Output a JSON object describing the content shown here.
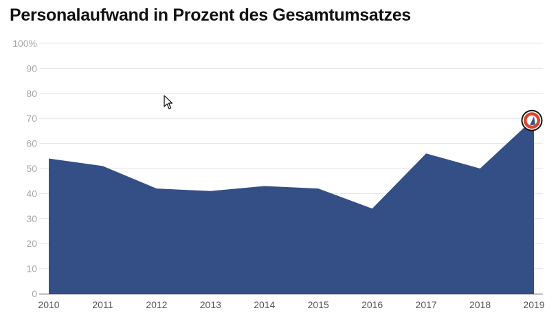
{
  "chart_data": {
    "type": "area",
    "title": "Personalaufwand in Prozent des Gesamtumsatzes",
    "xlabel": "",
    "ylabel": "",
    "x": [
      "2010",
      "2011",
      "2012",
      "2013",
      "2014",
      "2015",
      "2016",
      "2017",
      "2018",
      "2019"
    ],
    "values": [
      54,
      51,
      42,
      41,
      43,
      42,
      34,
      56,
      50,
      70
    ],
    "ylim": [
      0,
      100
    ],
    "y_ticks": [
      "0",
      "10",
      "20",
      "30",
      "40",
      "50",
      "60",
      "70",
      "80",
      "90",
      "100%"
    ],
    "grid": true,
    "legend": "none",
    "highlighted_point": "2019",
    "colors": {
      "area": "#344f85",
      "grid": "#e4e4e4",
      "tick_y": "#a6a6a6",
      "tick_x": "#555555",
      "axis": "#333333",
      "highlight_fill": "#e0432a",
      "highlight_ring": "#111111"
    }
  }
}
